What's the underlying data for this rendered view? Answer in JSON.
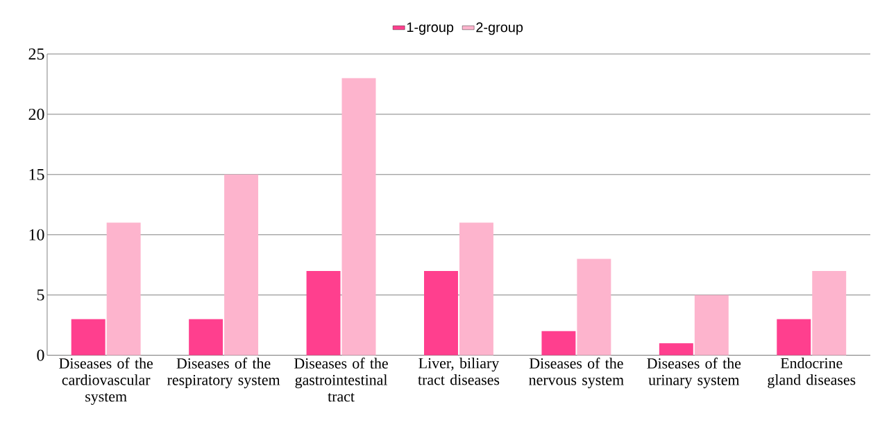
{
  "chart_data": {
    "type": "bar",
    "categories": [
      "Diseases of the cardiovascular system",
      "Diseases of the respiratory system",
      "Diseases of the gastrointestinal tract",
      "Liver, biliary tract diseases",
      "Diseases of the nervous system",
      "Diseases of the urinary system",
      "Endocrine gland diseases"
    ],
    "series": [
      {
        "name": "1-group",
        "color": "#ff3f8e",
        "values": [
          3,
          3,
          7,
          7,
          2,
          1,
          3
        ]
      },
      {
        "name": "2-group",
        "color": "#fdb4cd",
        "values": [
          11,
          15,
          23,
          11,
          8,
          5,
          7
        ]
      }
    ],
    "ylim": [
      0,
      25
    ],
    "yticks": [
      0,
      5,
      10,
      15,
      20,
      25
    ],
    "grid": "y",
    "legend": "top"
  }
}
